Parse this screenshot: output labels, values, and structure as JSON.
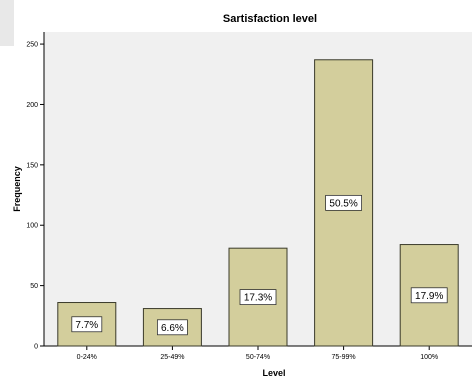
{
  "chart_data": {
    "type": "bar",
    "title": "Sartisfaction level",
    "xlabel": "Level",
    "ylabel": "Frequency",
    "categories": [
      "0-24%",
      "25-49%",
      "50-74%",
      "75-99%",
      "100%"
    ],
    "values": [
      36,
      31,
      81,
      237,
      84
    ],
    "data_labels": [
      "7.7%",
      "6.6%",
      "17.3%",
      "50.5%",
      "17.9%"
    ],
    "ylim": [
      0,
      260
    ],
    "yticks": [
      0,
      50,
      100,
      150,
      200,
      250
    ],
    "grid": false,
    "legend": "none",
    "colors": {
      "bar_fill": "#d3ce9c",
      "bar_stroke": "#3a3a2a",
      "plot_background": "#f0f0f0",
      "page_background": "#ffffff"
    }
  }
}
